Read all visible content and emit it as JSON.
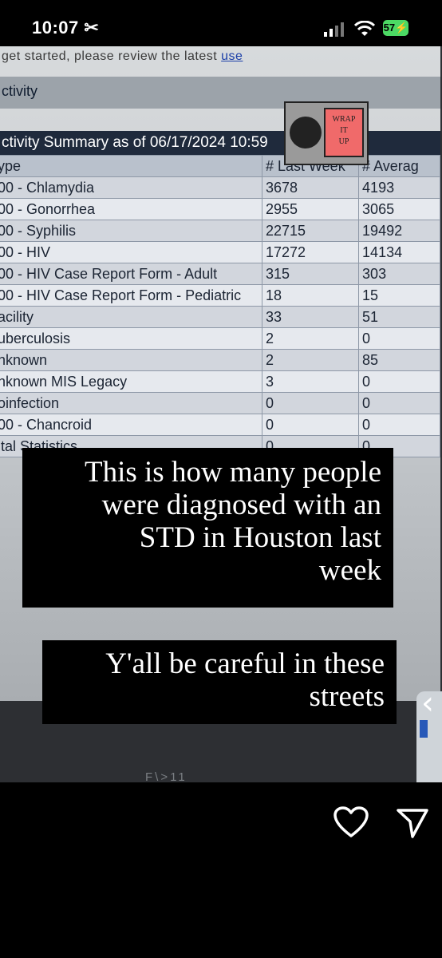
{
  "status_bar": {
    "time": "10:07",
    "battery": "57"
  },
  "screen_photo": {
    "top_line": "get started, please review the latest ",
    "top_line_link": "use",
    "activity_tab": "ctivity",
    "summary_title": "ctivity Summary as of 06/17/2024 10:59",
    "columns": [
      "ype",
      "# Last Week",
      "# Averag"
    ],
    "rows": [
      [
        "00 - Chlamydia",
        "3678",
        "4193"
      ],
      [
        "00 - Gonorrhea",
        "2955",
        "3065"
      ],
      [
        "00 - Syphilis",
        "22715",
        "19492"
      ],
      [
        "00 - HIV",
        "17272",
        "14134"
      ],
      [
        "00 - HIV Case Report Form - Adult",
        "315",
        "303"
      ],
      [
        "00 - HIV Case Report Form - Pediatric",
        "18",
        "15"
      ],
      [
        "acility",
        "33",
        "51"
      ],
      [
        "uberculosis",
        "2",
        "0"
      ],
      [
        "nknown",
        "2",
        "85"
      ],
      [
        "nknown MIS Legacy",
        "3",
        "0"
      ],
      [
        "oinfection",
        "0",
        "0"
      ],
      [
        "00 - Chancroid",
        "0",
        "0"
      ],
      [
        "ital Statistics",
        "0",
        "0"
      ]
    ],
    "bezel_brand": "F\\>11"
  },
  "sticker": {
    "text": [
      "WRAP",
      "IT",
      "UP"
    ]
  },
  "captions": {
    "caption1_lines": [
      "This is how many people",
      "were diagnosed with an",
      "STD in Houston last",
      "week"
    ],
    "caption2_lines": [
      "Y'all be careful in these",
      "streets"
    ]
  },
  "icons": {
    "like": "heart-icon",
    "share": "send-icon",
    "status_icon": "scissors-icon"
  }
}
